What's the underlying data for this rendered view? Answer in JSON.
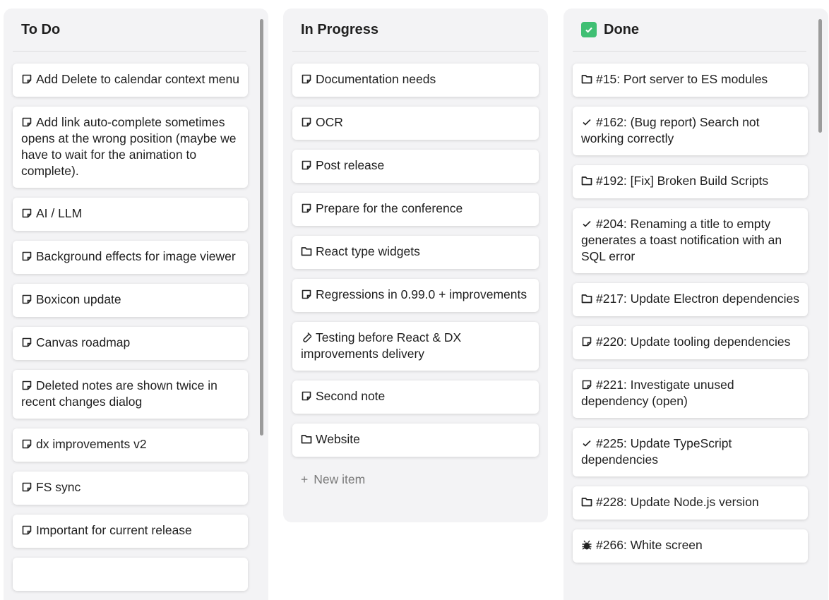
{
  "columns": [
    {
      "title": "To Do",
      "icon": "",
      "items": [
        {
          "icon": "note-icon",
          "text": "Add Delete to calendar context menu"
        },
        {
          "icon": "note-icon",
          "text": "Add link auto-complete sometimes opens at the wrong position (maybe we have to wait for the animation to complete)."
        },
        {
          "icon": "note-icon",
          "text": "AI / LLM"
        },
        {
          "icon": "note-icon",
          "text": "Background effects for image viewer"
        },
        {
          "icon": "note-icon",
          "text": "Boxicon update"
        },
        {
          "icon": "note-icon",
          "text": "Canvas roadmap"
        },
        {
          "icon": "note-icon",
          "text": "Deleted notes are shown twice in recent changes dialog"
        },
        {
          "icon": "note-icon",
          "text": "dx improvements v2"
        },
        {
          "icon": "note-icon",
          "text": "FS sync"
        },
        {
          "icon": "note-icon",
          "text": "Important for current release"
        }
      ]
    },
    {
      "title": "In Progress",
      "icon": "",
      "items": [
        {
          "icon": "note-icon",
          "text": "Documentation needs"
        },
        {
          "icon": "note-icon",
          "text": "OCR"
        },
        {
          "icon": "note-icon",
          "text": "Post release"
        },
        {
          "icon": "note-icon",
          "text": "Prepare for the conference"
        },
        {
          "icon": "folder-icon",
          "text": "React type widgets"
        },
        {
          "icon": "note-icon",
          "text": "Regressions in 0.99.0 + improvements"
        },
        {
          "icon": "test-tube-icon",
          "text": "Testing before React & DX improvements delivery"
        },
        {
          "icon": "note-icon",
          "text": "Second note"
        },
        {
          "icon": "folder-icon",
          "text": "Website"
        }
      ],
      "new_item_label": "New item"
    },
    {
      "title": "Done",
      "icon": "check-box-emoji",
      "items": [
        {
          "icon": "folder-icon",
          "text": "#15: Port server to ES modules"
        },
        {
          "icon": "check-icon",
          "text": "#162: (Bug report) Search not working correctly"
        },
        {
          "icon": "folder-icon",
          "text": "#192: [Fix] Broken Build Scripts"
        },
        {
          "icon": "check-icon",
          "text": "#204: Renaming a title to empty generates a toast notification with an SQL error"
        },
        {
          "icon": "folder-icon",
          "text": "#217: Update Electron dependencies"
        },
        {
          "icon": "note-icon",
          "text": "#220: Update tooling dependencies"
        },
        {
          "icon": "note-icon",
          "text": "#221: Investigate unused dependency (open)"
        },
        {
          "icon": "check-icon",
          "text": "#225: Update TypeScript dependencies"
        },
        {
          "icon": "folder-icon",
          "text": "#228: Update Node.js version"
        },
        {
          "icon": "bug-icon",
          "text": "#266: White screen"
        }
      ]
    }
  ],
  "colors": {
    "column_bg": "#f3f3f5",
    "card_bg": "#ffffff",
    "done_emoji": "#3fbf73"
  }
}
